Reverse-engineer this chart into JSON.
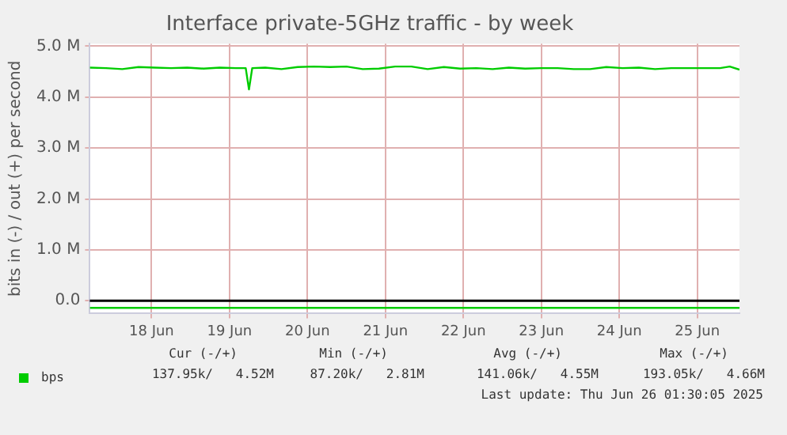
{
  "chart_data": {
    "type": "line",
    "title": "Interface private-5GHz traffic - by week",
    "ylabel": "bits in (-) / out (+) per second",
    "xlim": [
      "2025-06-17T17:00",
      "2025-06-26T01:00"
    ],
    "xticks": [
      {
        "value": "2025-06-18T12:00",
        "label": "18 Jun"
      },
      {
        "value": "2025-06-19T12:00",
        "label": "19 Jun"
      },
      {
        "value": "2025-06-20T12:00",
        "label": "20 Jun"
      },
      {
        "value": "2025-06-21T12:00",
        "label": "21 Jun"
      },
      {
        "value": "2025-06-22T12:00",
        "label": "22 Jun"
      },
      {
        "value": "2025-06-23T12:00",
        "label": "23 Jun"
      },
      {
        "value": "2025-06-24T12:00",
        "label": "24 Jun"
      },
      {
        "value": "2025-06-25T12:00",
        "label": "25 Jun"
      }
    ],
    "ylim": [
      -250000,
      5050000
    ],
    "yticks": [
      {
        "value": 0,
        "label": "0.0"
      },
      {
        "value": 1000000,
        "label": "1.0 M"
      },
      {
        "value": 2000000,
        "label": "2.0 M"
      },
      {
        "value": 3000000,
        "label": "3.0 M"
      },
      {
        "value": 4000000,
        "label": "4.0 M"
      },
      {
        "value": 5000000,
        "label": "5.0 M"
      }
    ],
    "grid": true,
    "legend": "bottom",
    "marker": "none",
    "line_style": "solid",
    "ref_lines": [
      {
        "axis": "y",
        "value": 0,
        "color": "#000000"
      }
    ],
    "series": [
      {
        "name": "bps",
        "color": "#00cc00",
        "x": [
          "2025-06-17T17:00",
          "2025-06-17T22:00",
          "2025-06-18T03:00",
          "2025-06-18T08:00",
          "2025-06-18T13:00",
          "2025-06-18T18:00",
          "2025-06-18T23:00",
          "2025-06-19T04:00",
          "2025-06-19T09:00",
          "2025-06-19T14:00",
          "2025-06-19T17:00",
          "2025-06-19T18:00",
          "2025-06-19T19:00",
          "2025-06-19T23:00",
          "2025-06-20T04:00",
          "2025-06-20T09:00",
          "2025-06-20T14:00",
          "2025-06-20T19:00",
          "2025-06-21T00:00",
          "2025-06-21T05:00",
          "2025-06-21T10:00",
          "2025-06-21T15:00",
          "2025-06-21T20:00",
          "2025-06-22T01:00",
          "2025-06-22T06:00",
          "2025-06-22T11:00",
          "2025-06-22T16:00",
          "2025-06-22T21:00",
          "2025-06-23T02:00",
          "2025-06-23T07:00",
          "2025-06-23T12:00",
          "2025-06-23T17:00",
          "2025-06-23T22:00",
          "2025-06-24T03:00",
          "2025-06-24T08:00",
          "2025-06-24T13:00",
          "2025-06-24T18:00",
          "2025-06-24T23:00",
          "2025-06-25T04:00",
          "2025-06-25T09:00",
          "2025-06-25T14:00",
          "2025-06-25T19:00",
          "2025-06-25T22:00",
          "2025-06-26T01:00"
        ],
        "values": [
          4580000,
          4570000,
          4550000,
          4590000,
          4580000,
          4570000,
          4580000,
          4560000,
          4580000,
          4570000,
          4570000,
          4150000,
          4570000,
          4580000,
          4550000,
          4590000,
          4600000,
          4590000,
          4600000,
          4550000,
          4560000,
          4600000,
          4600000,
          4550000,
          4590000,
          4560000,
          4570000,
          4550000,
          4580000,
          4560000,
          4570000,
          4570000,
          4550000,
          4550000,
          4590000,
          4570000,
          4580000,
          4550000,
          4570000,
          4570000,
          4570000,
          4570000,
          4600000,
          4540000
        ]
      },
      {
        "color": "#00cc00",
        "x": [
          "2025-06-17T17:00",
          "2025-06-26T01:00"
        ],
        "values": [
          -140000,
          -140000
        ]
      }
    ],
    "annotations": [
      "Cur (-/+)",
      "Min (-/+)",
      "Avg (-/+)",
      "Max (-/+)",
      "137.95k/   4.52M",
      "87.20k/   2.81M",
      "141.06k/   4.55M",
      "193.05k/   4.66M",
      "Last update: Thu Jun 26 01:30:05 2025"
    ]
  }
}
